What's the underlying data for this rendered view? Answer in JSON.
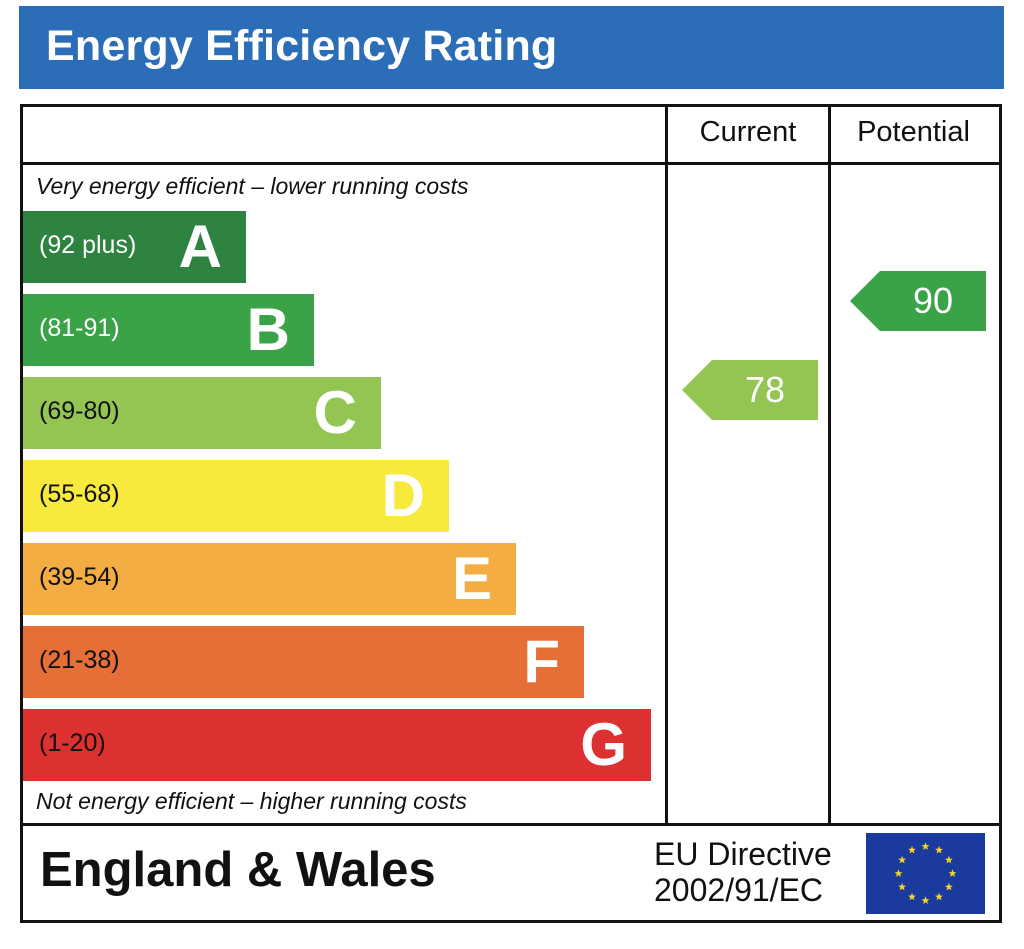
{
  "title": "Energy Efficiency Rating",
  "columns": {
    "current": "Current",
    "potential": "Potential"
  },
  "captions": {
    "top": "Very energy efficient – lower running costs",
    "bottom": "Not energy efficient – higher running costs"
  },
  "footer": {
    "region": "England & Wales",
    "directive_line1": "EU Directive",
    "directive_line2": "2002/91/EC",
    "flag_icon": "eu-flag-icon"
  },
  "chart_data": {
    "type": "bar",
    "categories": [
      "A",
      "B",
      "C",
      "D",
      "E",
      "F",
      "G"
    ],
    "bands": [
      {
        "letter": "A",
        "range": "(92 plus)",
        "color": "#2e8340",
        "range_color": "#ffffff"
      },
      {
        "letter": "B",
        "range": "(81-91)",
        "color": "#3aa348",
        "range_color": "#ffffff"
      },
      {
        "letter": "C",
        "range": "(69-80)",
        "color": "#94c552",
        "range_color": "#111111"
      },
      {
        "letter": "D",
        "range": "(55-68)",
        "color": "#f8ea3c",
        "range_color": "#111111"
      },
      {
        "letter": "E",
        "range": "(39-54)",
        "color": "#f4ad43",
        "range_color": "#111111"
      },
      {
        "letter": "F",
        "range": "(21-38)",
        "color": "#e66e37",
        "range_color": "#111111"
      },
      {
        "letter": "G",
        "range": "(1-20)",
        "color": "#dd3030",
        "range_color": "#111111"
      }
    ],
    "current": {
      "value": 78,
      "band": "C",
      "color": "#94c552"
    },
    "potential": {
      "value": 90,
      "band": "B",
      "color": "#3aa348"
    }
  }
}
